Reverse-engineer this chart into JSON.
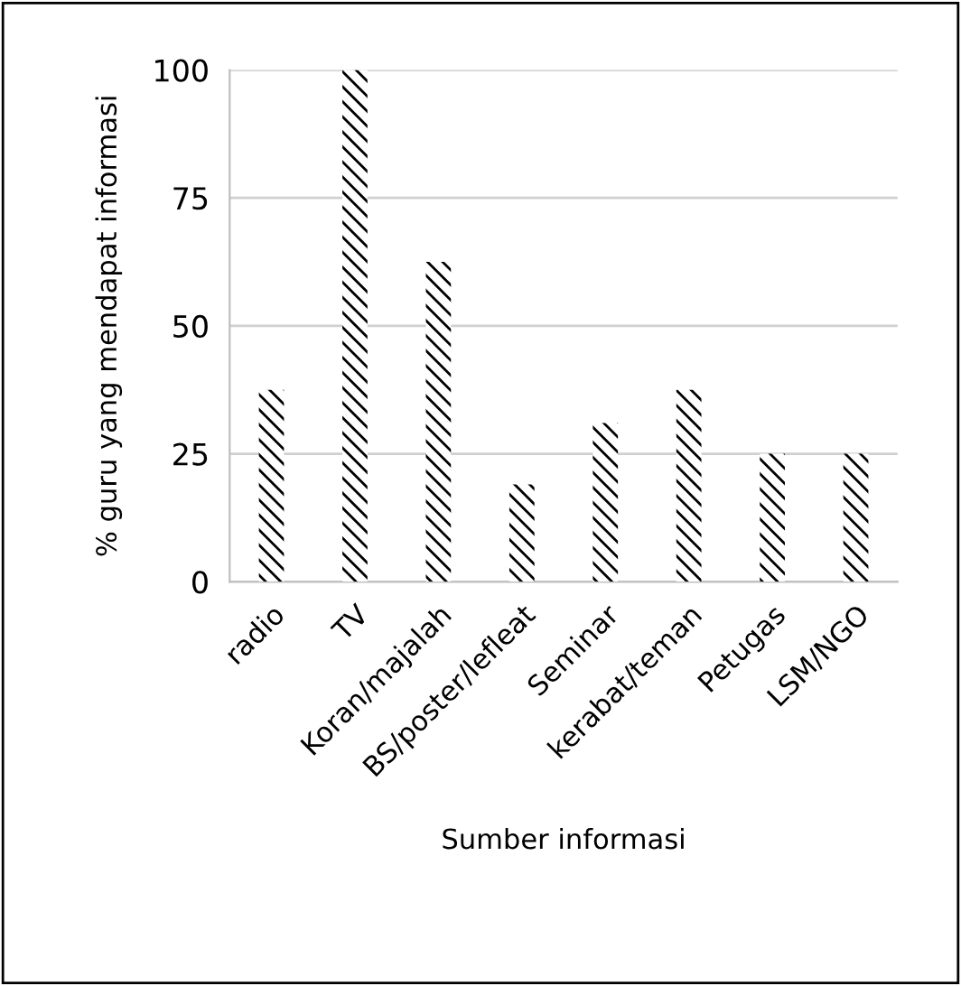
{
  "chart_data": {
    "type": "bar",
    "xlabel": "Sumber informasi",
    "ylabel": "% guru yang mendapat informasi",
    "categories": [
      "radio",
      "TV",
      "Koran/majalah",
      "BS/poster/lefleat",
      "Seminar",
      "kerabat/teman",
      "Petugas",
      "LSM/NGO"
    ],
    "values": [
      37.5,
      100,
      62.5,
      19,
      31,
      37.5,
      25,
      25
    ],
    "color": "#000000",
    "ylim": [
      0,
      100
    ],
    "yticks": [
      0,
      25,
      50,
      75,
      100
    ],
    "grid": "y",
    "legend": false
  }
}
